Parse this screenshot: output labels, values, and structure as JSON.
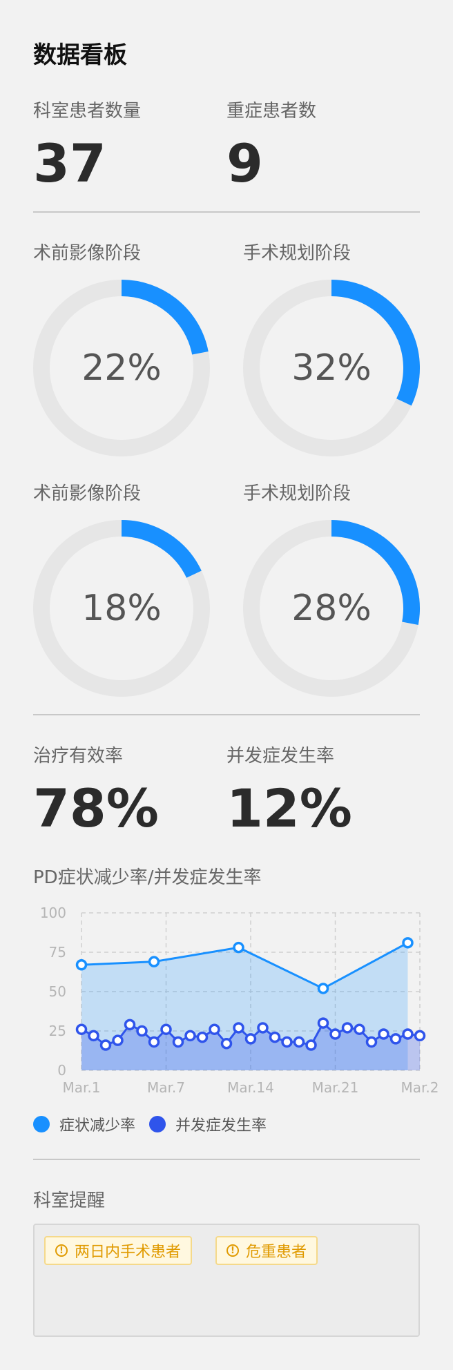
{
  "header": {
    "title": "数据看板"
  },
  "stats_top": [
    {
      "label": "科室患者数量",
      "value": "37"
    },
    {
      "label": "重症患者数",
      "value": "9"
    }
  ],
  "rings": [
    {
      "label": "术前影像阶段",
      "percent_text": "22%",
      "fraction": 0.22
    },
    {
      "label": "手术规划阶段",
      "percent_text": "32%",
      "fraction": 0.32
    },
    {
      "label": "术前影像阶段",
      "percent_text": "18%",
      "fraction": 0.18
    },
    {
      "label": "手术规划阶段",
      "percent_text": "28%",
      "fraction": 0.28
    }
  ],
  "colors": {
    "ring_accent": "#1890ff",
    "ring_track": "#e6e6e6",
    "series_1": "#1890ff",
    "series_2": "#2f54eb",
    "tag_text": "#e09a00"
  },
  "stats_mid": [
    {
      "label": "治疗有效率",
      "value": "78%"
    },
    {
      "label": "并发症发生率",
      "value": "12%"
    }
  ],
  "chart_data": {
    "type": "area",
    "title": "PD症状减少率/并发症发生率",
    "xlabel": "",
    "ylabel": "",
    "ylim": [
      0,
      100
    ],
    "y_ticks": [
      0,
      25,
      50,
      75,
      100
    ],
    "x_tick_labels": [
      "Mar.1",
      "Mar.7",
      "Mar.14",
      "Mar.21",
      "Mar.2"
    ],
    "grid": true,
    "legend_position": "bottom-left",
    "series": [
      {
        "name": "症状减少率",
        "x": [
          0,
          6,
          13,
          20,
          27
        ],
        "values": [
          67,
          69,
          78,
          52,
          81
        ]
      },
      {
        "name": "并发症发生率",
        "x": [
          0,
          1,
          2,
          3,
          4,
          5,
          6,
          7,
          8,
          9,
          10,
          11,
          12,
          13,
          14,
          15,
          16,
          17,
          18,
          19,
          20,
          21,
          22,
          23,
          24,
          25,
          26,
          27,
          28
        ],
        "values": [
          26,
          22,
          16,
          19,
          29,
          25,
          18,
          26,
          18,
          22,
          21,
          26,
          17,
          27,
          20,
          27,
          21,
          18,
          18,
          16,
          30,
          23,
          27,
          26,
          18,
          23,
          20,
          23,
          22
        ]
      }
    ]
  },
  "legend": [
    {
      "label": "症状减少率"
    },
    {
      "label": "并发症发生率"
    }
  ],
  "reminder": {
    "title": "科室提醒",
    "tags": [
      {
        "icon": "!",
        "label": "两日内手术患者"
      },
      {
        "icon": "!",
        "label": "危重患者"
      }
    ]
  }
}
